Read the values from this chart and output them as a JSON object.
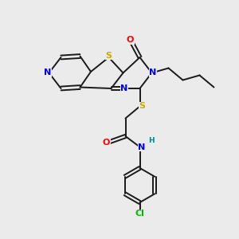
{
  "background_color": "#ebebeb",
  "bond_color": "#1a1a1a",
  "colors": {
    "N": "#0000ee",
    "S": "#ccaa00",
    "O": "#ff0000",
    "Cl": "#00bb00",
    "H": "#008888",
    "C": "#1a1a1a"
  },
  "font_size": 8.0,
  "figsize": [
    3.0,
    3.0
  ],
  "dpi": 100
}
